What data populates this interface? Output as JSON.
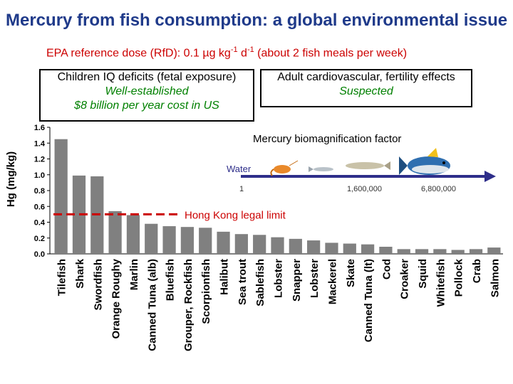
{
  "header": {
    "title": "Mercury from fish consumption: a global environmental issue",
    "subtitle_main": "EPA reference dose (RfD): 0.1 µg kg",
    "subtitle_sup1": "-1",
    "subtitle_mid": " d",
    "subtitle_sup2": "-1",
    "subtitle_tail": " (about 2 fish meals per week)"
  },
  "box_children": {
    "line1": "Children IQ deficits (fetal exposure)",
    "line2": "Well-established",
    "line3": "$8 billion per year cost in US"
  },
  "box_adult": {
    "line1": "Adult cardiovascular, fertility effects",
    "line2": "Suspected"
  },
  "inset": {
    "title": "Mercury biomagnification factor",
    "water_label": "Water",
    "factor_start": "1",
    "factor_mid": "1,600,000",
    "factor_end": "6,800,000"
  },
  "colors": {
    "bar": "#808080",
    "limit_line": "#cc0000",
    "title": "#1f3a8a",
    "arrow": "#2e2e8a"
  },
  "chart_data": {
    "type": "bar",
    "ylabel": "Hg (mg/kg)",
    "xlabel": "",
    "ylim": [
      0,
      1.6
    ],
    "yticks": [
      "0.0",
      "0.2",
      "0.4",
      "0.6",
      "0.8",
      "1.0",
      "1.2",
      "1.4",
      "1.6"
    ],
    "grid": false,
    "categories": [
      "Tilefish",
      "Shark",
      "Swordfish",
      "Orange Roughy",
      "Marlin",
      "Canned Tuna (alb)",
      "Bluefish",
      "Grouper, Rockfish",
      "Scorpionfish",
      "Halibut",
      "Sea trout",
      "Sablefish",
      "Lobster",
      "Snapper",
      "Lobster",
      "Mackerel",
      "Skate",
      "Canned Tuna (lt)",
      "Cod",
      "Croaker",
      "Squid",
      "Whitefish",
      "Pollock",
      "Crab",
      "Salmon"
    ],
    "values": [
      1.45,
      0.99,
      0.98,
      0.54,
      0.49,
      0.38,
      0.35,
      0.34,
      0.33,
      0.28,
      0.25,
      0.24,
      0.21,
      0.19,
      0.17,
      0.14,
      0.13,
      0.12,
      0.09,
      0.06,
      0.06,
      0.06,
      0.05,
      0.06,
      0.08
    ],
    "annotations": [
      {
        "text": "Hong Kong legal limit",
        "y": 0.5
      }
    ]
  }
}
